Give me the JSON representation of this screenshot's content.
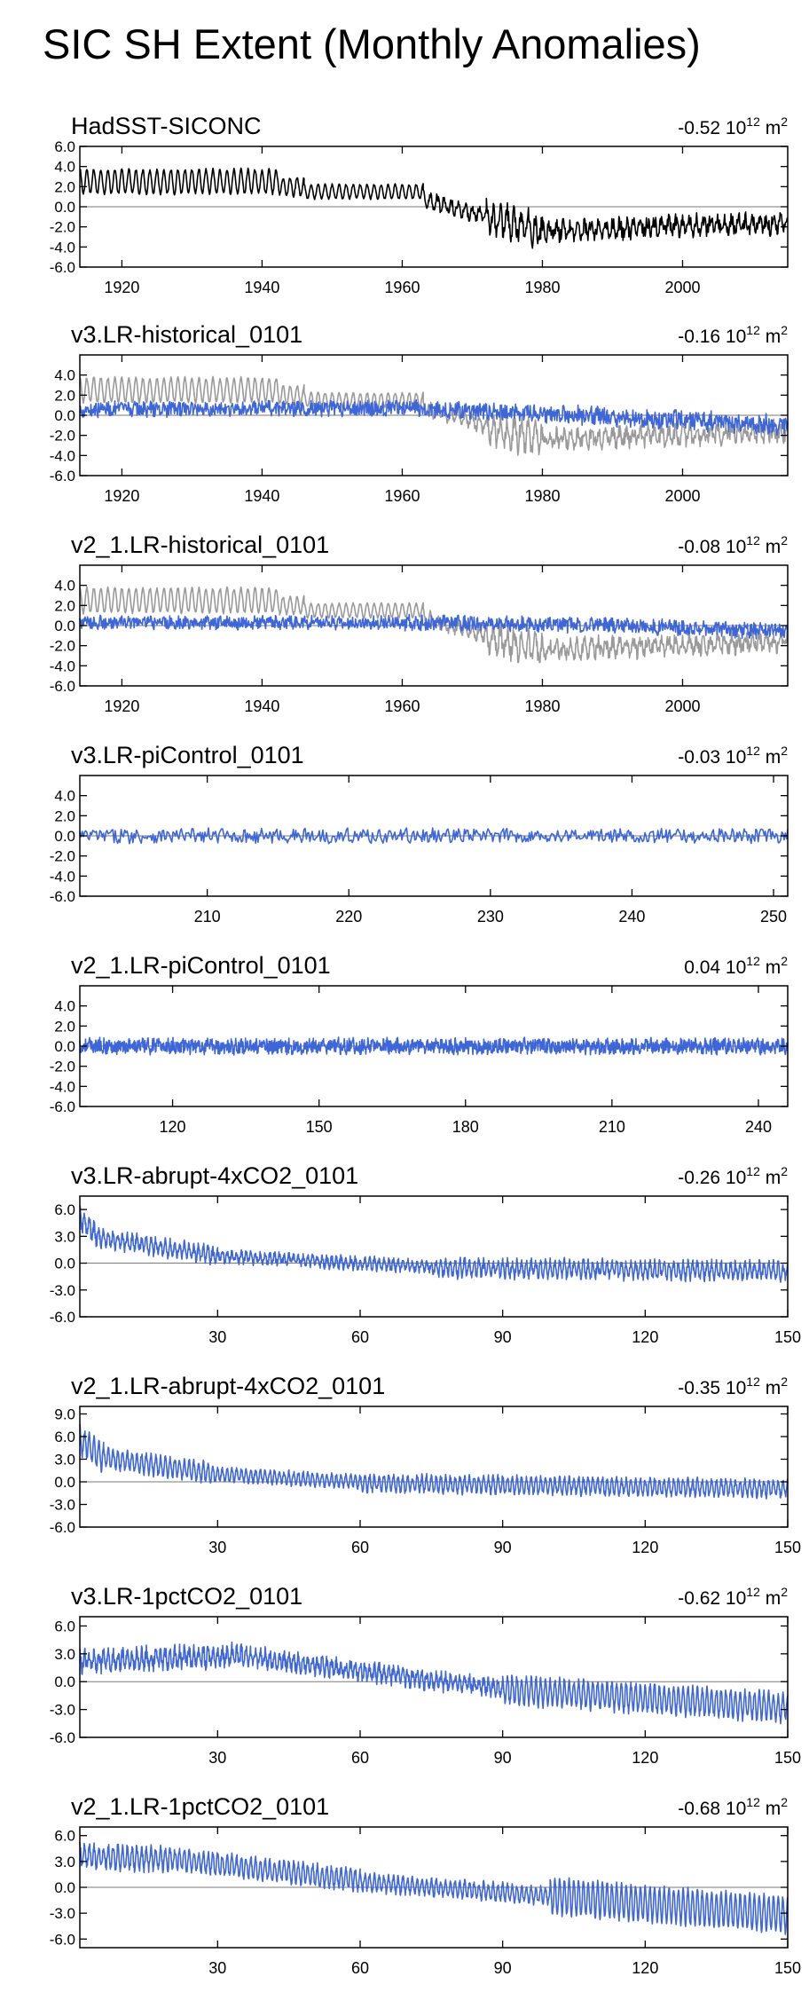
{
  "title": "SIC SH Extent (Monthly Anomalies)",
  "colors": {
    "obs": "#000000",
    "model": "#3E66D8",
    "obs_overlay": "#9A9A9A",
    "zero_line": "#7A7A7A",
    "axis": "#000000"
  },
  "unit_label": {
    "scale": "10",
    "scale_exp": "12",
    "unit": "m",
    "unit_exp": "2"
  },
  "chart_data": [
    {
      "type": "line",
      "title": "HadSST-SICONC",
      "mean": "-0.52",
      "xlim": [
        1914,
        2015
      ],
      "ylim": [
        -6,
        6
      ],
      "yticks": [
        6.0,
        4.0,
        2.0,
        0.0,
        -2.0,
        -4.0,
        -6.0
      ],
      "ytick_labels": [
        "6.0",
        "4.0",
        "2.0",
        "0.0",
        "-2.0",
        "-4.0",
        "-6.0"
      ],
      "xticks": [
        1920,
        1940,
        1960,
        1980,
        2000
      ],
      "xtick_labels": [
        "1920",
        "1940",
        "1960",
        "1980",
        "2000"
      ],
      "series": [
        {
          "name": "HadSST-SICONC",
          "role": "obs",
          "segments": [
            {
              "start": 1914,
              "end": 1942.5,
              "base": [
                2.5,
                2.5
              ],
              "amp": 1.2,
              "noise": 0.15,
              "period": 1
            },
            {
              "start": 1942.5,
              "end": 1946,
              "base": [
                2.0,
                2.0
              ],
              "amp": 0.9,
              "noise": 0.15,
              "period": 1
            },
            {
              "start": 1946,
              "end": 1963,
              "base": [
                1.5,
                1.5
              ],
              "amp": 0.7,
              "noise": 0.1,
              "period": 1
            },
            {
              "start": 1963,
              "end": 1972,
              "base": [
                0.8,
                -1.0
              ],
              "amp": 0.6,
              "noise": 0.4,
              "period": 1
            },
            {
              "start": 1972,
              "end": 1980,
              "base": [
                -1.2,
                -2.4
              ],
              "amp": 1.2,
              "noise": 0.9,
              "period": 1
            },
            {
              "start": 1980,
              "end": 2015,
              "base": [
                -2.4,
                -1.6
              ],
              "amp": 0.6,
              "noise": 0.7,
              "period": 1
            }
          ]
        }
      ]
    },
    {
      "type": "line",
      "title": "v3.LR-historical_0101",
      "mean": "-0.16",
      "xlim": [
        1914,
        2015
      ],
      "ylim": [
        -6,
        6
      ],
      "yticks": [
        4.0,
        2.0,
        0.0,
        -2.0,
        -4.0,
        -6.0
      ],
      "ytick_labels": [
        "4.0",
        "2.0",
        "0.0",
        "-2.0",
        "-4.0",
        "-6.0"
      ],
      "xticks": [
        1920,
        1940,
        1960,
        1980,
        2000
      ],
      "xtick_labels": [
        "1920",
        "1940",
        "1960",
        "1980",
        "2000"
      ],
      "series": [
        {
          "name": "HadSST-SICONC",
          "role": "obs_overlay",
          "segments": [
            {
              "start": 1914,
              "end": 1942.5,
              "base": [
                2.5,
                2.5
              ],
              "amp": 1.2,
              "noise": 0.15,
              "period": 1
            },
            {
              "start": 1942.5,
              "end": 1946,
              "base": [
                2.0,
                2.0
              ],
              "amp": 0.9,
              "noise": 0.15,
              "period": 1
            },
            {
              "start": 1946,
              "end": 1963,
              "base": [
                1.5,
                1.5
              ],
              "amp": 0.7,
              "noise": 0.1,
              "period": 1
            },
            {
              "start": 1963,
              "end": 1972,
              "base": [
                0.8,
                -1.0
              ],
              "amp": 0.6,
              "noise": 0.4,
              "period": 1
            },
            {
              "start": 1972,
              "end": 1980,
              "base": [
                -1.2,
                -2.4
              ],
              "amp": 1.2,
              "noise": 0.9,
              "period": 1
            },
            {
              "start": 1980,
              "end": 2015,
              "base": [
                -2.4,
                -1.6
              ],
              "amp": 0.6,
              "noise": 0.7,
              "period": 1
            }
          ]
        },
        {
          "name": "v3.LR-historical_0101",
          "role": "model",
          "segments": [
            {
              "start": 1914,
              "end": 1960,
              "base": [
                0.6,
                0.7
              ],
              "amp": 0.15,
              "noise": 0.7,
              "period": 1
            },
            {
              "start": 1960,
              "end": 1985,
              "base": [
                0.7,
                0.0
              ],
              "amp": 0.15,
              "noise": 0.8,
              "period": 1
            },
            {
              "start": 1985,
              "end": 2015,
              "base": [
                0.0,
                -1.0
              ],
              "amp": 0.2,
              "noise": 0.9,
              "period": 1
            }
          ]
        }
      ]
    },
    {
      "type": "line",
      "title": "v2_1.LR-historical_0101",
      "mean": "-0.08",
      "xlim": [
        1914,
        2015
      ],
      "ylim": [
        -6,
        6
      ],
      "yticks": [
        4.0,
        2.0,
        0.0,
        -2.0,
        -4.0,
        -6.0
      ],
      "ytick_labels": [
        "4.0",
        "2.0",
        "0.0",
        "-2.0",
        "-4.0",
        "-6.0"
      ],
      "xticks": [
        1920,
        1940,
        1960,
        1980,
        2000
      ],
      "xtick_labels": [
        "1920",
        "1940",
        "1960",
        "1980",
        "2000"
      ],
      "series": [
        {
          "name": "HadSST-SICONC",
          "role": "obs_overlay",
          "segments": [
            {
              "start": 1914,
              "end": 1942.5,
              "base": [
                2.5,
                2.5
              ],
              "amp": 1.2,
              "noise": 0.15,
              "period": 1
            },
            {
              "start": 1942.5,
              "end": 1946,
              "base": [
                2.0,
                2.0
              ],
              "amp": 0.9,
              "noise": 0.15,
              "period": 1
            },
            {
              "start": 1946,
              "end": 1963,
              "base": [
                1.5,
                1.5
              ],
              "amp": 0.7,
              "noise": 0.1,
              "period": 1
            },
            {
              "start": 1963,
              "end": 1972,
              "base": [
                0.8,
                -1.0
              ],
              "amp": 0.6,
              "noise": 0.4,
              "period": 1
            },
            {
              "start": 1972,
              "end": 1980,
              "base": [
                -1.2,
                -2.4
              ],
              "amp": 1.2,
              "noise": 0.9,
              "period": 1
            },
            {
              "start": 1980,
              "end": 2015,
              "base": [
                -2.4,
                -1.6
              ],
              "amp": 0.6,
              "noise": 0.7,
              "period": 1
            }
          ]
        },
        {
          "name": "v2_1.LR-historical_0101",
          "role": "model",
          "segments": [
            {
              "start": 1914,
              "end": 1960,
              "base": [
                0.3,
                0.3
              ],
              "amp": 0.15,
              "noise": 0.6,
              "period": 1
            },
            {
              "start": 1960,
              "end": 1990,
              "base": [
                0.3,
                0.0
              ],
              "amp": 0.15,
              "noise": 0.7,
              "period": 1
            },
            {
              "start": 1990,
              "end": 2015,
              "base": [
                0.0,
                -0.6
              ],
              "amp": 0.15,
              "noise": 0.7,
              "period": 1
            }
          ]
        }
      ]
    },
    {
      "type": "line",
      "title": "v3.LR-piControl_0101",
      "mean": "-0.03",
      "xlim": [
        201,
        251
      ],
      "ylim": [
        -6,
        6
      ],
      "yticks": [
        4.0,
        2.0,
        0.0,
        -2.0,
        -4.0,
        -6.0
      ],
      "ytick_labels": [
        "4.0",
        "2.0",
        "0.0",
        "-2.0",
        "-4.0",
        "-6.0"
      ],
      "xticks": [
        210,
        220,
        230,
        240,
        250
      ],
      "xtick_labels": [
        "210",
        "220",
        "230",
        "240",
        "250"
      ],
      "series": [
        {
          "name": "v3.LR-piControl_0101",
          "role": "model",
          "segments": [
            {
              "start": 201,
              "end": 251,
              "base": [
                0.0,
                0.0
              ],
              "amp": 0.1,
              "noise": 0.7,
              "period": 1
            }
          ]
        }
      ]
    },
    {
      "type": "line",
      "title": "v2_1.LR-piControl_0101",
      "mean": "0.04",
      "xlim": [
        101,
        246
      ],
      "ylim": [
        -6,
        6
      ],
      "yticks": [
        4.0,
        2.0,
        0.0,
        -2.0,
        -4.0,
        -6.0
      ],
      "ytick_labels": [
        "4.0",
        "2.0",
        "0.0",
        "-2.0",
        "-4.0",
        "-6.0"
      ],
      "xticks": [
        120,
        150,
        180,
        210,
        240
      ],
      "xtick_labels": [
        "120",
        "150",
        "180",
        "210",
        "240"
      ],
      "series": [
        {
          "name": "v2_1.LR-piControl_0101",
          "role": "model",
          "segments": [
            {
              "start": 101,
              "end": 246,
              "base": [
                0.0,
                0.0
              ],
              "amp": 0.2,
              "noise": 0.7,
              "period": 1
            }
          ]
        }
      ]
    },
    {
      "type": "line",
      "title": "v3.LR-abrupt-4xCO2_0101",
      "mean": "-0.26",
      "xlim": [
        1,
        150
      ],
      "ylim": [
        -6,
        7.5
      ],
      "yticks": [
        6.0,
        3.0,
        0.0,
        -3.0,
        -6.0
      ],
      "ytick_labels": [
        "6.0",
        "3.0",
        "0.0",
        "-3.0",
        "-6.0"
      ],
      "xticks": [
        30,
        60,
        90,
        120,
        150
      ],
      "xtick_labels": [
        "30",
        "60",
        "90",
        "120",
        "150"
      ],
      "series": [
        {
          "name": "v3.LR-abrupt-4xCO2_0101",
          "role": "model",
          "segments": [
            {
              "start": 1,
              "end": 5,
              "base": [
                5.0,
                2.8
              ],
              "amp": 1.0,
              "noise": 0.6,
              "period": 1
            },
            {
              "start": 5,
              "end": 30,
              "base": [
                2.8,
                0.8
              ],
              "amp": 0.8,
              "noise": 0.5,
              "period": 1
            },
            {
              "start": 30,
              "end": 75,
              "base": [
                0.8,
                -0.4
              ],
              "amp": 0.5,
              "noise": 0.4,
              "period": 1
            },
            {
              "start": 75,
              "end": 150,
              "base": [
                -0.5,
                -0.9
              ],
              "amp": 0.8,
              "noise": 0.5,
              "period": 1
            }
          ]
        }
      ]
    },
    {
      "type": "line",
      "title": "v2_1.LR-abrupt-4xCO2_0101",
      "mean": "-0.35",
      "xlim": [
        1,
        150
      ],
      "ylim": [
        -6,
        10
      ],
      "yticks": [
        9.0,
        6.0,
        3.0,
        0.0,
        -3.0,
        -6.0
      ],
      "ytick_labels": [
        "9.0",
        "6.0",
        "3.0",
        "0.0",
        "-3.0",
        "-6.0"
      ],
      "xticks": [
        30,
        60,
        90,
        120,
        150
      ],
      "xtick_labels": [
        "30",
        "60",
        "90",
        "120",
        "150"
      ],
      "series": [
        {
          "name": "v2_1.LR-abrupt-4xCO2_0101",
          "role": "model",
          "segments": [
            {
              "start": 1,
              "end": 6,
              "base": [
                5.5,
                3.2
              ],
              "amp": 1.8,
              "noise": 0.5,
              "period": 1
            },
            {
              "start": 6,
              "end": 30,
              "base": [
                3.2,
                1.0
              ],
              "amp": 1.2,
              "noise": 0.4,
              "period": 1
            },
            {
              "start": 30,
              "end": 60,
              "base": [
                1.0,
                0.0
              ],
              "amp": 0.8,
              "noise": 0.3,
              "period": 1
            },
            {
              "start": 60,
              "end": 150,
              "base": [
                -0.2,
                -0.9
              ],
              "amp": 1.0,
              "noise": 0.4,
              "period": 1
            }
          ]
        }
      ]
    },
    {
      "type": "line",
      "title": "v3.LR-1pctCO2_0101",
      "mean": "-0.62",
      "xlim": [
        1,
        150
      ],
      "ylim": [
        -6,
        7
      ],
      "yticks": [
        6.0,
        3.0,
        0.0,
        -3.0,
        -6.0
      ],
      "ytick_labels": [
        "6.0",
        "3.0",
        "0.0",
        "-3.0",
        "-6.0"
      ],
      "xticks": [
        30,
        60,
        90,
        120,
        150
      ],
      "xtick_labels": [
        "30",
        "60",
        "90",
        "120",
        "150"
      ],
      "series": [
        {
          "name": "v3.LR-1pctCO2_0101",
          "role": "model",
          "segments": [
            {
              "start": 1,
              "end": 35,
              "base": [
                2.2,
                2.8
              ],
              "amp": 0.8,
              "noise": 0.7,
              "period": 1
            },
            {
              "start": 35,
              "end": 90,
              "base": [
                2.8,
                -0.8
              ],
              "amp": 0.7,
              "noise": 0.6,
              "period": 1
            },
            {
              "start": 90,
              "end": 150,
              "base": [
                -0.8,
                -2.8
              ],
              "amp": 1.4,
              "noise": 0.4,
              "period": 1
            }
          ]
        }
      ]
    },
    {
      "type": "line",
      "title": "v2_1.LR-1pctCO2_0101",
      "mean": "-0.68",
      "xlim": [
        1,
        150
      ],
      "ylim": [
        -7,
        7
      ],
      "yticks": [
        6.0,
        3.0,
        0.0,
        -3.0,
        -6.0
      ],
      "ytick_labels": [
        "6.0",
        "3.0",
        "0.0",
        "-3.0",
        "-6.0"
      ],
      "xticks": [
        30,
        60,
        90,
        120,
        150
      ],
      "xtick_labels": [
        "30",
        "60",
        "90",
        "120",
        "150"
      ],
      "series": [
        {
          "name": "v2_1.LR-1pctCO2_0101",
          "role": "model",
          "segments": [
            {
              "start": 1,
              "end": 20,
              "base": [
                3.6,
                3.3
              ],
              "amp": 1.2,
              "noise": 0.5,
              "period": 1
            },
            {
              "start": 20,
              "end": 60,
              "base": [
                3.3,
                0.8
              ],
              "amp": 1.1,
              "noise": 0.4,
              "period": 1
            },
            {
              "start": 60,
              "end": 100,
              "base": [
                0.6,
                -1.0
              ],
              "amp": 0.9,
              "noise": 0.35,
              "period": 1
            },
            {
              "start": 100,
              "end": 150,
              "base": [
                -1.0,
                -3.2
              ],
              "amp": 2.0,
              "noise": 0.3,
              "period": 1
            }
          ]
        }
      ]
    }
  ]
}
